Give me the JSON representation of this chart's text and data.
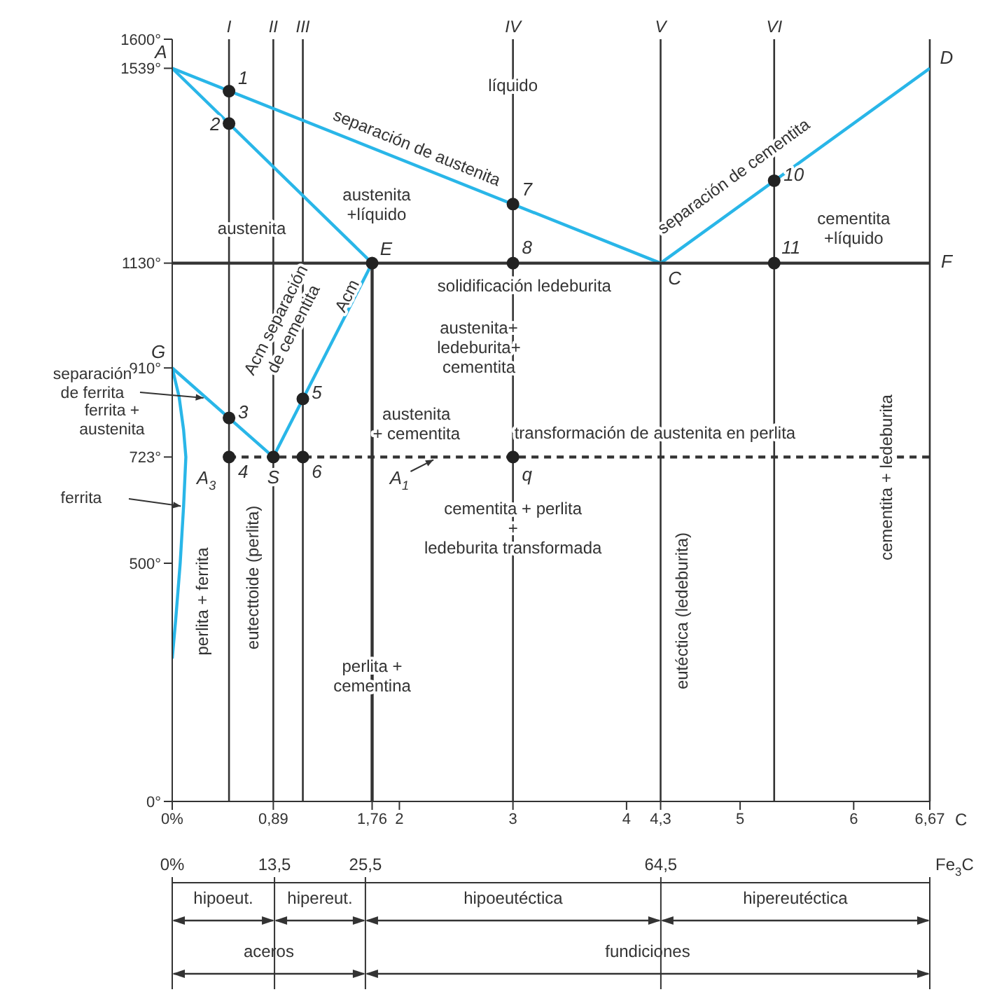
{
  "chart_data": {
    "type": "line",
    "xlabel": "C",
    "xlim": [
      0,
      6.67
    ],
    "ylim": [
      0,
      1600
    ],
    "xticks": [
      {
        "value": 0,
        "label": "0%"
      },
      {
        "value": 0.89,
        "label": "0,89"
      },
      {
        "value": 1.76,
        "label": "1,76"
      },
      2,
      3,
      4,
      {
        "value": 4.3,
        "label": "4,3"
      },
      5,
      6,
      {
        "value": 6.67,
        "label": "6,67"
      }
    ],
    "yticks": [
      {
        "value": 0,
        "label": "0°"
      },
      {
        "value": 500,
        "label": "500°"
      },
      {
        "value": 723,
        "label": "723°"
      },
      {
        "value": 910,
        "label": "910°"
      },
      {
        "value": 1130,
        "label": "1130°"
      },
      {
        "value": 1539,
        "label": "1539°"
      },
      {
        "value": 1600,
        "label": "1600°"
      }
    ],
    "x2label": "Fe$_{3}$C",
    "x2lim": [
      0,
      100
    ],
    "x2ticks": [
      {
        "value": 0,
        "label": "0%"
      },
      {
        "value": 13.5,
        "label": "13,5"
      },
      {
        "value": 25.5,
        "label": "25,5"
      },
      {
        "value": 64.5,
        "label": "64,5"
      },
      {
        "value": 100,
        "label": null
      }
    ],
    "series": [
      {
        "color": "#29b6e8",
        "x": [
          0,
          4.3,
          6.67
        ],
        "values": [
          1539,
          1130,
          1539
        ]
      },
      {
        "color": "#29b6e8",
        "x": [
          0,
          1.76
        ],
        "values": [
          1539,
          1130
        ]
      },
      {
        "color": "#29b6e8",
        "x": [
          1.76,
          0.89
        ],
        "values": [
          1130,
          723
        ]
      },
      {
        "color": "#29b6e8",
        "x": [
          0,
          0.89
        ],
        "values": [
          910,
          723
        ]
      },
      {
        "color": "#29b6e8",
        "x": [
          0,
          0.06,
          0.1,
          0.12,
          0.1,
          0.07,
          0.03,
          0
        ],
        "values": [
          910,
          850,
          780,
          723,
          620,
          500,
          380,
          300
        ]
      },
      {
        "color": "#333333",
        "x": [
          0,
          6.67
        ],
        "values": [
          1130,
          1130
        ]
      },
      {
        "color": "#333333",
        "x": [
          1.76,
          1.76
        ],
        "values": [
          1130,
          0
        ]
      },
      {
        "color": "#333333",
        "x": [
          0.5,
          6.67
        ],
        "values": [
          723,
          723
        ],
        "line_style": "dashed"
      },
      {
        "type": "scatter",
        "color": "#222222",
        "x": [
          0.5,
          0.5,
          0.5,
          0.5,
          0.89,
          1.15,
          1.15,
          1.76,
          3,
          3,
          3,
          5.3,
          5.3
        ],
        "values": [
          1491,
          1423,
          805,
          723,
          723,
          845,
          723,
          1130,
          1254,
          1130,
          723,
          1303,
          1130
        ]
      }
    ],
    "ref_lines": [
      {
        "axis": "x",
        "value": 0.5,
        "label": "I",
        "color": "#333333"
      },
      {
        "axis": "x",
        "value": 0.89,
        "label": "II",
        "color": "#333333"
      },
      {
        "axis": "x",
        "value": 1.15,
        "label": "III",
        "color": "#333333"
      },
      {
        "axis": "x",
        "value": 3,
        "label": "IV",
        "color": "#333333"
      },
      {
        "axis": "x",
        "value": 4.3,
        "label": "V",
        "color": "#333333"
      },
      {
        "axis": "x",
        "value": 5.3,
        "label": "VI",
        "color": "#333333"
      },
      {
        "axis": "x",
        "value": 6.67,
        "color": "#333333"
      }
    ],
    "annotations": [
      {
        "text": "A",
        "x": 0,
        "y": 1539
      },
      {
        "text": "D",
        "x": 6.67,
        "y": 1539
      },
      {
        "text": "E",
        "x": 1.76,
        "y": 1130
      },
      {
        "text": "C",
        "x": 4.3,
        "y": 1130
      },
      {
        "text": "F",
        "x": 6.67,
        "y": 1130
      },
      {
        "text": "G",
        "x": 0,
        "y": 910
      },
      {
        "text": "S",
        "x": 0.89,
        "y": 723
      },
      {
        "text": "1",
        "x": 0.5,
        "y": 1491
      },
      {
        "text": "2",
        "x": 0.5,
        "y": 1423
      },
      {
        "text": "3",
        "x": 0.5,
        "y": 805
      },
      {
        "text": "4",
        "x": 0.5,
        "y": 723
      },
      {
        "text": "5",
        "x": 1.15,
        "y": 845
      },
      {
        "text": "6",
        "x": 1.15,
        "y": 723
      },
      {
        "text": "7",
        "x": 3,
        "y": 1254
      },
      {
        "text": "8",
        "x": 3,
        "y": 1130
      },
      {
        "text": "q",
        "x": 3,
        "y": 723
      },
      {
        "text": "10",
        "x": 5.3,
        "y": 1303
      },
      {
        "text": "11",
        "x": 5.3,
        "y": 1130
      },
      "A$_{3}$",
      "A$_{1}$",
      "líquido",
      "separación de austenita",
      "separación de cementita",
      "austenita\n+líquido",
      "austenita",
      "cementita\n+líquido",
      "solidificación ledeburita",
      "austenita+\nledeburita+\ncementita",
      "Acm separación\nde cementita",
      "Acm",
      "austenita\n+ cementita",
      "transformación de austenita en perlita",
      "cementita + perlita\n+\nledeburita transformada",
      "perlita +\ncementina",
      "perlita + ferrita",
      "eutecttoide (perlita)",
      "eutéctica (ledeburita)",
      "cementita + ledeburita",
      "separación\nde ferrita",
      "ferrita +\naustenita",
      "ferrita",
      "hipoeut.",
      "hipereut.",
      "hipoeutéctica",
      "hipereutéctica",
      "aceros",
      "fundiciones"
    ]
  }
}
